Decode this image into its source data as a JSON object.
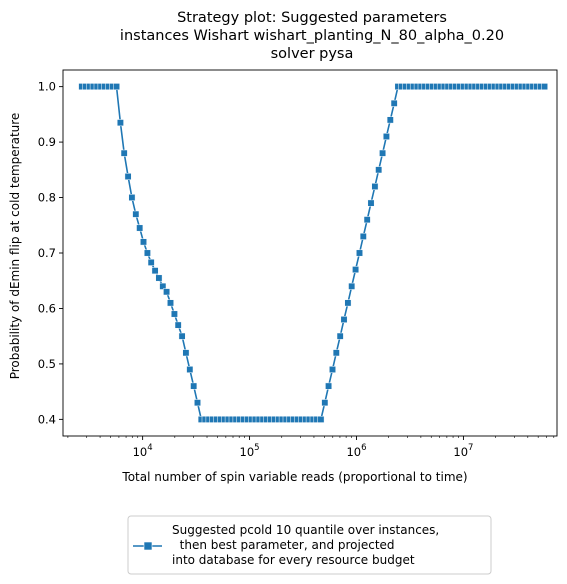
{
  "chart_data": {
    "type": "line",
    "title": [
      "Strategy plot: Suggested parameters",
      "instances Wishart wishart_planting_N_80_alpha_0.20",
      "solver pysa"
    ],
    "xlabel": "Total number of spin variable reads (proportional to time)",
    "ylabel": "Probability of dEmin flip at cold temperature",
    "x_scale": "log",
    "xlim": [
      1800,
      75000000
    ],
    "ylim": [
      0.37,
      1.03
    ],
    "x_ticks": [
      {
        "value": 10000,
        "base": "10",
        "exp": "4"
      },
      {
        "value": 100000,
        "base": "10",
        "exp": "5"
      },
      {
        "value": 1000000,
        "base": "10",
        "exp": "6"
      },
      {
        "value": 10000000,
        "base": "10",
        "exp": "7"
      }
    ],
    "y_ticks": [
      "0.4",
      "0.5",
      "0.6",
      "0.7",
      "0.8",
      "0.9",
      "1.0"
    ],
    "grid": false,
    "legend_position": "below",
    "series": [
      {
        "name": "Suggested pcold 10 quantile over instances,\n  then best parameter, and projected\ninto database for every resource budget",
        "color": "#1f77b4",
        "marker": "square",
        "points": [
          [
            2700,
            1.0
          ],
          [
            2930,
            1.0
          ],
          [
            3190,
            1.0
          ],
          [
            3460,
            1.0
          ],
          [
            3760,
            1.0
          ],
          [
            4090,
            1.0
          ],
          [
            4440,
            1.0
          ],
          [
            4830,
            1.0
          ],
          [
            5250,
            1.0
          ],
          [
            5700,
            1.0
          ],
          [
            6190,
            0.935
          ],
          [
            6730,
            0.88
          ],
          [
            7310,
            0.838
          ],
          [
            7940,
            0.8
          ],
          [
            8630,
            0.77
          ],
          [
            9380,
            0.745
          ],
          [
            10190,
            0.72
          ],
          [
            11070,
            0.7
          ],
          [
            12030,
            0.683
          ],
          [
            13070,
            0.668
          ],
          [
            14200,
            0.655
          ],
          [
            15430,
            0.64
          ],
          [
            16770,
            0.63
          ],
          [
            18220,
            0.61
          ],
          [
            19800,
            0.59
          ],
          [
            21520,
            0.57
          ],
          [
            23380,
            0.55
          ],
          [
            25400,
            0.52
          ],
          [
            27600,
            0.49
          ],
          [
            30000,
            0.46
          ],
          [
            32600,
            0.43
          ],
          [
            35400,
            0.4
          ],
          [
            38500,
            0.4
          ],
          [
            41800,
            0.4
          ],
          [
            45400,
            0.4
          ],
          [
            49400,
            0.4
          ],
          [
            53600,
            0.4
          ],
          [
            58300,
            0.4
          ],
          [
            63300,
            0.4
          ],
          [
            68800,
            0.4
          ],
          [
            74800,
            0.4
          ],
          [
            81200,
            0.4
          ],
          [
            88300,
            0.4
          ],
          [
            95900,
            0.4
          ],
          [
            104200,
            0.4
          ],
          [
            113200,
            0.4
          ],
          [
            123000,
            0.4
          ],
          [
            133700,
            0.4
          ],
          [
            145300,
            0.4
          ],
          [
            157800,
            0.4
          ],
          [
            171500,
            0.4
          ],
          [
            186400,
            0.4
          ],
          [
            202500,
            0.4
          ],
          [
            220000,
            0.4
          ],
          [
            239100,
            0.4
          ],
          [
            259800,
            0.4
          ],
          [
            282300,
            0.4
          ],
          [
            306700,
            0.4
          ],
          [
            333300,
            0.4
          ],
          [
            362100,
            0.4
          ],
          [
            393500,
            0.4
          ],
          [
            427600,
            0.4
          ],
          [
            464600,
            0.4
          ],
          [
            504800,
            0.43
          ],
          [
            548500,
            0.46
          ],
          [
            596000,
            0.49
          ],
          [
            647600,
            0.52
          ],
          [
            703700,
            0.55
          ],
          [
            764600,
            0.58
          ],
          [
            830800,
            0.61
          ],
          [
            902700,
            0.64
          ],
          [
            980900,
            0.67
          ],
          [
            1065800,
            0.7
          ],
          [
            1158100,
            0.73
          ],
          [
            1258400,
            0.76
          ],
          [
            1367300,
            0.79
          ],
          [
            1485700,
            0.82
          ],
          [
            1614300,
            0.85
          ],
          [
            1754100,
            0.88
          ],
          [
            1905900,
            0.91
          ],
          [
            2070900,
            0.94
          ],
          [
            2250200,
            0.97
          ],
          [
            2445000,
            1.0
          ],
          [
            2656700,
            1.0
          ],
          [
            2886700,
            1.0
          ],
          [
            3136600,
            1.0
          ],
          [
            3408200,
            1.0
          ],
          [
            3703200,
            1.0
          ],
          [
            4023900,
            1.0
          ],
          [
            4372200,
            1.0
          ],
          [
            4750800,
            1.0
          ],
          [
            5162100,
            1.0
          ],
          [
            5609000,
            1.0
          ],
          [
            6094600,
            1.0
          ],
          [
            6622300,
            1.0
          ],
          [
            7195600,
            1.0
          ],
          [
            7818600,
            1.0
          ],
          [
            8495500,
            1.0
          ],
          [
            9231000,
            1.0
          ],
          [
            10030200,
            1.0
          ],
          [
            10898600,
            1.0
          ],
          [
            11842200,
            1.0
          ],
          [
            12867400,
            1.0
          ],
          [
            13981400,
            1.0
          ],
          [
            15191900,
            1.0
          ],
          [
            16507100,
            1.0
          ],
          [
            17936200,
            1.0
          ],
          [
            19489100,
            1.0
          ],
          [
            21176400,
            1.0
          ],
          [
            23009800,
            1.0
          ],
          [
            25001900,
            1.0
          ],
          [
            27166400,
            1.0
          ],
          [
            29518400,
            1.0
          ],
          [
            32074000,
            1.0
          ],
          [
            34850900,
            1.0
          ],
          [
            37868200,
            1.0
          ],
          [
            41146700,
            1.0
          ],
          [
            44709000,
            1.0
          ],
          [
            48579800,
            1.0
          ],
          [
            52785700,
            1.0
          ],
          [
            57355700,
            1.0
          ]
        ]
      }
    ]
  }
}
